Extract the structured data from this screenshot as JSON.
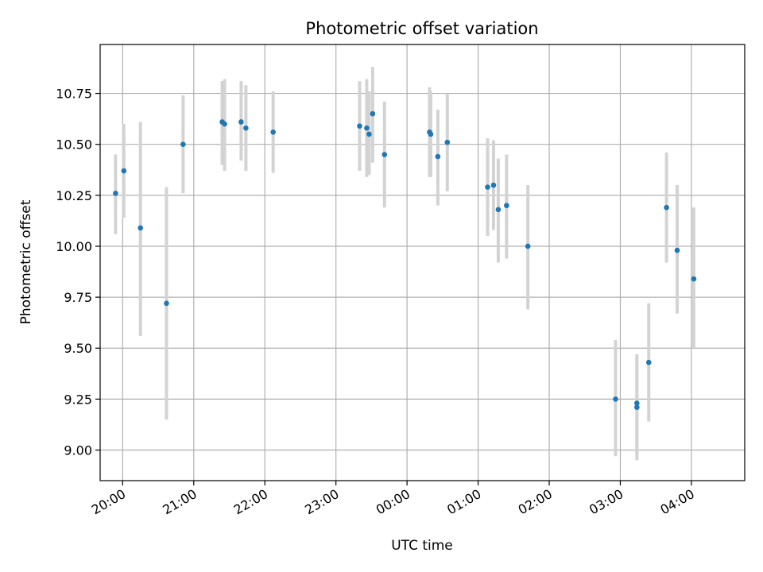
{
  "chart_data": {
    "type": "scatter",
    "title": "Photometric offset variation",
    "xlabel": "UTC time",
    "ylabel": "Photometric offset",
    "x_axis_kind": "time",
    "xlim": [
      "19:41",
      "04:45"
    ],
    "ylim": [
      8.85,
      10.99
    ],
    "yticks": [
      9.0,
      9.25,
      9.5,
      9.75,
      10.0,
      10.25,
      10.5,
      10.75
    ],
    "ytick_labels": [
      "9.00",
      "9.25",
      "9.50",
      "9.75",
      "10.00",
      "10.25",
      "10.50",
      "10.75"
    ],
    "xticks": [
      "20:00",
      "21:00",
      "22:00",
      "23:00",
      "00:00",
      "01:00",
      "02:00",
      "03:00",
      "04:00"
    ],
    "xtick_labels": [
      "20:00",
      "21:00",
      "22:00",
      "23:00",
      "00:00",
      "01:00",
      "02:00",
      "03:00",
      "04:00"
    ],
    "grid": true,
    "series": [
      {
        "marker_color": "#1f77b4",
        "errorbar_color": "#d3d3d3",
        "points": [
          {
            "x": "19:54",
            "y": 10.26,
            "ylow": 10.06,
            "yhigh": 10.45
          },
          {
            "x": "20:01",
            "y": 10.37,
            "ylow": 10.14,
            "yhigh": 10.6
          },
          {
            "x": "20:15",
            "y": 10.09,
            "ylow": 9.56,
            "yhigh": 10.61
          },
          {
            "x": "20:37",
            "y": 9.72,
            "ylow": 9.15,
            "yhigh": 10.29
          },
          {
            "x": "20:51",
            "y": 10.5,
            "ylow": 10.26,
            "yhigh": 10.74
          },
          {
            "x": "21:24",
            "y": 10.61,
            "ylow": 10.4,
            "yhigh": 10.81
          },
          {
            "x": "21:26",
            "y": 10.6,
            "ylow": 10.37,
            "yhigh": 10.82
          },
          {
            "x": "21:40",
            "y": 10.61,
            "ylow": 10.42,
            "yhigh": 10.81
          },
          {
            "x": "21:44",
            "y": 10.58,
            "ylow": 10.37,
            "yhigh": 10.79
          },
          {
            "x": "22:07",
            "y": 10.56,
            "ylow": 10.36,
            "yhigh": 10.76
          },
          {
            "x": "23:20",
            "y": 10.59,
            "ylow": 10.37,
            "yhigh": 10.81
          },
          {
            "x": "23:26",
            "y": 10.58,
            "ylow": 10.34,
            "yhigh": 10.82
          },
          {
            "x": "23:28",
            "y": 10.55,
            "ylow": 10.35,
            "yhigh": 10.76
          },
          {
            "x": "23:31",
            "y": 10.65,
            "ylow": 10.41,
            "yhigh": 10.88
          },
          {
            "x": "23:41",
            "y": 10.45,
            "ylow": 10.19,
            "yhigh": 10.71
          },
          {
            "x": "00:19",
            "y": 10.56,
            "ylow": 10.34,
            "yhigh": 10.78
          },
          {
            "x": "00:20",
            "y": 10.55,
            "ylow": 10.34,
            "yhigh": 10.76
          },
          {
            "x": "00:26",
            "y": 10.44,
            "ylow": 10.2,
            "yhigh": 10.67
          },
          {
            "x": "00:34",
            "y": 10.51,
            "ylow": 10.27,
            "yhigh": 10.75
          },
          {
            "x": "01:08",
            "y": 10.29,
            "ylow": 10.05,
            "yhigh": 10.53
          },
          {
            "x": "01:13",
            "y": 10.3,
            "ylow": 10.08,
            "yhigh": 10.52
          },
          {
            "x": "01:17",
            "y": 10.18,
            "ylow": 9.92,
            "yhigh": 10.43
          },
          {
            "x": "01:24",
            "y": 10.2,
            "ylow": 9.94,
            "yhigh": 10.45
          },
          {
            "x": "01:42",
            "y": 10.0,
            "ylow": 9.69,
            "yhigh": 10.3
          },
          {
            "x": "02:56",
            "y": 9.25,
            "ylow": 8.97,
            "yhigh": 9.54
          },
          {
            "x": "03:14",
            "y": 9.23,
            "ylow": 8.95,
            "yhigh": 9.47
          },
          {
            "x": "03:14",
            "y": 9.21,
            "ylow": 8.96,
            "yhigh": 9.46
          },
          {
            "x": "03:24",
            "y": 9.43,
            "ylow": 9.14,
            "yhigh": 9.72
          },
          {
            "x": "03:39",
            "y": 10.19,
            "ylow": 9.92,
            "yhigh": 10.46
          },
          {
            "x": "03:48",
            "y": 9.98,
            "ylow": 9.67,
            "yhigh": 10.3
          },
          {
            "x": "04:02",
            "y": 9.84,
            "ylow": 9.5,
            "yhigh": 10.19
          }
        ]
      }
    ]
  }
}
